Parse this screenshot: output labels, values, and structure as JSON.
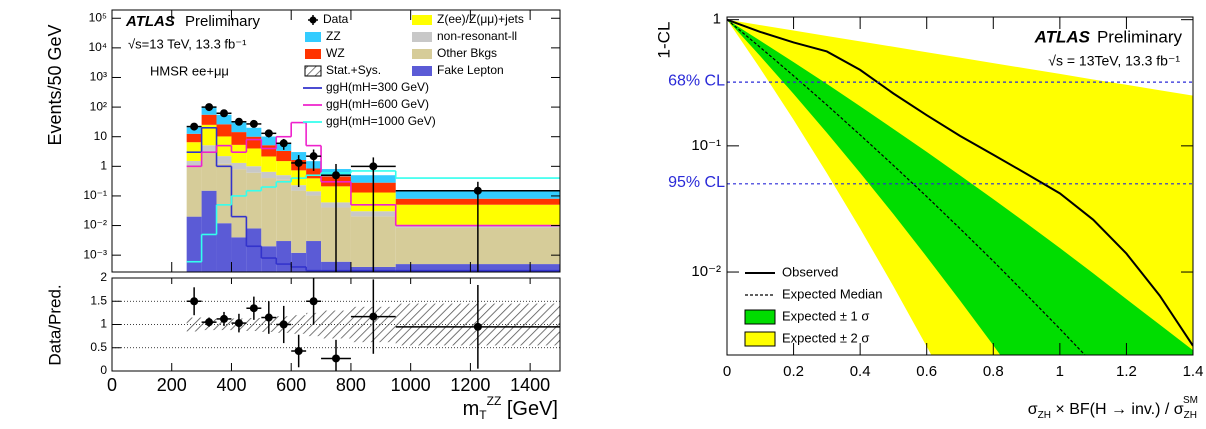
{
  "chart_data": [
    {
      "type": "histogram",
      "log_y": true,
      "ylabel": "Events/50 GeV",
      "xlabel": {
        "base": "m",
        "sub": "T",
        "sup": "ZZ",
        "unit": " [GeV]"
      },
      "annotations": {
        "experiment": "ATLAS",
        "status": "Preliminary",
        "energy": "√s=13 TeV,  13.3 fb⁻¹",
        "region": "HMSR  ee+μμ"
      },
      "xlim": [
        0,
        1500
      ],
      "xticks": [
        0,
        200,
        400,
        600,
        800,
        1000,
        1200,
        1400
      ],
      "ylim": [
        0.00027,
        190000
      ],
      "yticks": [
        {
          "value": 0.001,
          "label": "10⁻³"
        },
        {
          "value": 0.01,
          "label": "10⁻²"
        },
        {
          "value": 0.1,
          "label": "10⁻¹"
        },
        1,
        10,
        {
          "value": 100,
          "label": "10²"
        },
        {
          "value": 1000,
          "label": "10³"
        },
        {
          "value": 10000,
          "label": "10⁴"
        },
        {
          "value": 100000,
          "label": "10⁵"
        }
      ],
      "bins": [
        250,
        300,
        350,
        400,
        450,
        500,
        550,
        600,
        650,
        700,
        800,
        950,
        1500
      ],
      "stack": [
        {
          "name": "Fake Lepton",
          "color": "#5b5bd6",
          "values": [
            0.02,
            0.15,
            0.012,
            0.004,
            0.008,
            0.002,
            0.003,
            0.0012,
            0.003,
            0.0006,
            0.0004,
            0.0005
          ]
        },
        {
          "name": "Other Bkgs",
          "color": "#d6cc99",
          "values": [
            1,
            3,
            1.2,
            0.8,
            0.6,
            0.4,
            0.35,
            0.15,
            0.1,
            0.04,
            0.02,
            0.008
          ]
        },
        {
          "name": "non-resonant-ll",
          "color": "#c8c8c8",
          "values": [
            0.5,
            2,
            1,
            0.5,
            0.4,
            0.25,
            0.15,
            0.08,
            0.04,
            0.02,
            0.01,
            0.002
          ]
        },
        {
          "name": "Z(ee)/Z(μμ)+jets",
          "color": "#ffff00",
          "values": [
            5,
            20,
            8,
            4,
            3,
            1.5,
            1,
            0.5,
            0.25,
            0.15,
            0.1,
            0.04
          ]
        },
        {
          "name": "WZ",
          "color": "#ff3300",
          "values": [
            6,
            30,
            16,
            9,
            6,
            3,
            1.8,
            0.9,
            0.45,
            0.25,
            0.15,
            0.03
          ]
        },
        {
          "name": "ZZ",
          "color": "#33ccff",
          "values": [
            8,
            45,
            29,
            16,
            10,
            5,
            2.7,
            1.4,
            0.65,
            0.35,
            0.22,
            0.07
          ]
        }
      ],
      "signals": [
        {
          "name": "ggH(mH=300 GeV)",
          "color": "#3333cc",
          "values": [
            3,
            20,
            1,
            0.02,
            0.002,
            0.0008,
            0.0005,
            0.0004,
            0.0003,
            0.0003,
            0.0003,
            0.0003
          ]
        },
        {
          "name": "ggH(mH=600 GeV)",
          "color": "#ee22cc",
          "values": [
            1,
            3,
            5,
            3,
            8,
            4,
            10,
            30,
            5,
            0.3,
            0.05,
            0.01
          ]
        },
        {
          "name": "ggH(mH=1000 GeV)",
          "color": "#33ffee",
          "values": [
            0.0006,
            0.005,
            0.05,
            0.1,
            0.15,
            0.2,
            0.3,
            0.4,
            0.5,
            0.6,
            0.7,
            0.4
          ]
        }
      ],
      "data": {
        "name": "Data",
        "values": [
          22,
          100,
          62,
          32,
          27,
          13,
          6,
          1.3,
          2.2,
          0.5,
          1,
          0.15
        ],
        "errors": [
          5,
          10,
          8,
          6,
          5,
          3.6,
          2.4,
          1.1,
          1.5,
          0.7,
          1,
          0.15
        ]
      },
      "uncertainty": {
        "name": "Stat.+Sys."
      },
      "ratio": {
        "ylabel": "Data/Pred.",
        "ylim": [
          0,
          2
        ],
        "yticks": [
          0,
          0.5,
          1,
          1.5,
          2
        ],
        "grid": true,
        "values": [
          1.5,
          1.05,
          1.12,
          1.03,
          1.35,
          1.15,
          1.0,
          0.43,
          1.5,
          0.27,
          1.17,
          0.95
        ],
        "errors": [
          0.3,
          0.1,
          0.15,
          0.2,
          0.25,
          0.35,
          0.4,
          0.35,
          0.5,
          0.4,
          0.8,
          0.9
        ],
        "band": [
          0.15,
          0.12,
          0.12,
          0.13,
          0.14,
          0.16,
          0.18,
          0.2,
          0.25,
          0.3,
          0.38,
          0.45
        ]
      }
    },
    {
      "type": "limit",
      "log_y": true,
      "ylabel": "1-CL",
      "xlabel": {
        "sigma": "σ",
        "sub": "ZH",
        "middle": " × BF(H → inv.) / σ",
        "sub2": "ZH",
        "sup2": "SM"
      },
      "annotations": {
        "experiment": "ATLAS",
        "status": "Preliminary",
        "energy": "√s = 13TeV, 13.3 fb⁻¹"
      },
      "xlim": [
        0,
        1.4
      ],
      "xticks": [
        0,
        0.2,
        0.4,
        0.6,
        0.8,
        1,
        1.2,
        1.4
      ],
      "ylim": [
        0.0022,
        1.05
      ],
      "yticks": [
        {
          "value": 0.01,
          "label": "10⁻²"
        },
        {
          "value": 0.1,
          "label": "10⁻¹"
        },
        1
      ],
      "cl_lines": [
        {
          "value": 0.32,
          "label": "68% CL",
          "color": "#2a2ad8"
        },
        {
          "value": 0.05,
          "label": "95% CL",
          "color": "#2a2ad8"
        }
      ],
      "x": [
        0,
        0.1,
        0.2,
        0.3,
        0.4,
        0.5,
        0.6,
        0.7,
        0.8,
        0.9,
        1.0,
        1.1,
        1.2,
        1.3,
        1.4
      ],
      "bands": [
        {
          "name": "Expected ± 2 σ",
          "color": "#ffff00",
          "upper": [
            1,
            0.906,
            0.82,
            0.743,
            0.673,
            0.61,
            0.552,
            0.5,
            0.453,
            0.41,
            0.372,
            0.336,
            0.305,
            0.276,
            0.25
          ],
          "lower": [
            1,
            0.409,
            0.161,
            0.0608,
            0.0221,
            0.0077,
            0.00257,
            0.00084,
            null,
            null,
            null,
            null,
            null,
            null,
            null
          ]
        },
        {
          "name": "Expected ± 1 σ",
          "color": "#00dd00",
          "upper": [
            1,
            0.681,
            0.461,
            0.31,
            0.206,
            0.136,
            0.0895,
            0.0584,
            0.0378,
            0.0243,
            0.0155,
            0.00977,
            0.0061,
            0.00383,
            0.0024
          ],
          "lower": [
            1,
            0.514,
            0.258,
            0.127,
            0.0611,
            0.0288,
            0.0132,
            0.00595,
            0.00263,
            0.00113,
            null,
            null,
            null,
            null,
            null
          ]
        }
      ],
      "series": [
        {
          "name": "Observed",
          "color": "#000000",
          "style": "solid",
          "values": [
            1,
            0.8,
            0.66,
            0.56,
            0.4,
            0.26,
            0.175,
            0.12,
            0.085,
            0.06,
            0.042,
            0.026,
            0.014,
            0.0065,
            0.0026
          ]
        },
        {
          "name": "Expected Median",
          "color": "#000000",
          "style": "dashed",
          "values": [
            1,
            0.603,
            0.359,
            0.211,
            0.122,
            0.07,
            0.0396,
            0.0221,
            0.0122,
            0.0066,
            0.00355,
            0.00188,
            null,
            null,
            null
          ]
        }
      ]
    }
  ]
}
